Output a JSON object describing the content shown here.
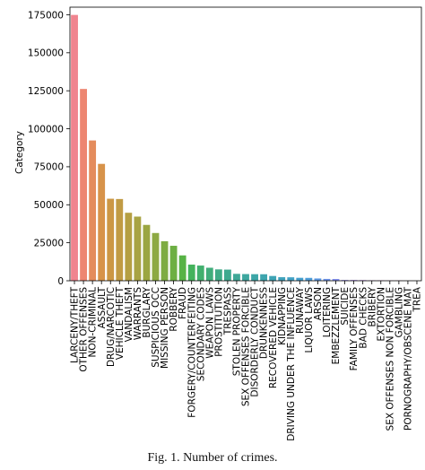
{
  "chart_data": {
    "type": "bar",
    "ylabel": "Category",
    "xlabel": "",
    "ylim": [
      0,
      180000
    ],
    "yticks": [
      0,
      25000,
      50000,
      75000,
      100000,
      125000,
      150000,
      175000
    ],
    "grid": false,
    "categories": [
      "LARCENY/THEFT",
      "OTHER OFFENSES",
      "NON-CRIMINAL",
      "ASSAULT",
      "DRUG/NARCOTIC",
      "VEHICLE THEFT",
      "VANDALISM",
      "WARRANTS",
      "BURGLARY",
      "SUSPICIOUS OCC",
      "MISSING PERSON",
      "ROBBERY",
      "FRAUD",
      "FORGERY/COUNTERFEITING",
      "SECONDARY CODES",
      "WEAPON LAWS",
      "PROSTITUTION",
      "TRESPASS",
      "STOLEN PROPERTY",
      "SEX OFFENSES FORCIBLE",
      "DISORDERLY CONDUCT",
      "DRUNKENNESS",
      "RECOVERED VEHICLE",
      "KIDNAPPING",
      "DRIVING UNDER THE INFLUENCE",
      "RUNAWAY",
      "LIQUOR LAWS",
      "ARSON",
      "LOITERING",
      "EMBEZZLEMENT",
      "SUICIDE",
      "FAMILY OFFENSES",
      "BAD CHECKS",
      "BRIBERY",
      "EXTORTION",
      "SEX OFFENSES NON FORCIBLE",
      "GAMBLING",
      "PORNOGRAPHY/OBSCENE MAT",
      "TREA"
    ],
    "values": [
      174900,
      126200,
      92300,
      76900,
      53970,
      53780,
      44730,
      42210,
      36750,
      31410,
      25990,
      23000,
      16680,
      10610,
      9990,
      8560,
      7480,
      7330,
      4540,
      4390,
      4320,
      4280,
      3140,
      2340,
      2270,
      1950,
      1900,
      1510,
      1220,
      1170,
      510,
      490,
      410,
      290,
      260,
      150,
      150,
      22,
      6
    ],
    "colors": [
      "#f0848f",
      "#ed8671",
      "#e48c5c",
      "#d7934a",
      "#cc9745",
      "#c19b44",
      "#b59f43",
      "#a8a343",
      "#9ba642",
      "#8da942",
      "#7eac42",
      "#6daf43",
      "#57b345",
      "#44b35c",
      "#42b06e",
      "#41ad7b",
      "#40ab86",
      "#3fa98f",
      "#3ea897",
      "#3da79f",
      "#3da6a7",
      "#3ea5ae",
      "#3fa4b5",
      "#41a3bd",
      "#43a2c5",
      "#46a0ce",
      "#4f9ed9",
      "#5d9ae4",
      "#7096ec",
      "#8490ef",
      "#988bef",
      "#aa84ef",
      "#ba7def",
      "#c976ec",
      "#d76fe4",
      "#e16cd8",
      "#e86ccb",
      "#ec6fbd",
      "#ef74ae"
    ]
  },
  "caption": "Fig. 1.    Number of crimes."
}
